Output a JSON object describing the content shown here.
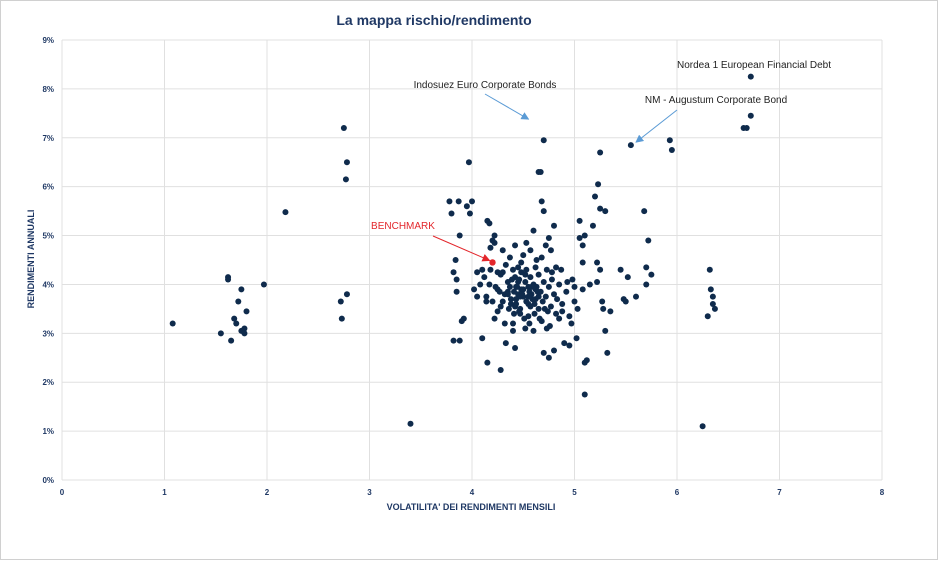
{
  "chart_data": {
    "type": "scatter",
    "title": "La mappa rischio/rendimento",
    "xlabel": "VOLATILITA' DEI RENDIMENTI MENSILI",
    "ylabel": "RENDIMENTI ANNUALI",
    "xlim": [
      0,
      8
    ],
    "ylim": [
      0,
      9
    ],
    "x_ticks": [
      "0",
      "1",
      "2",
      "3",
      "4",
      "5",
      "6",
      "7",
      "8"
    ],
    "y_ticks": [
      "0%",
      "1%",
      "2%",
      "3%",
      "4%",
      "5%",
      "6%",
      "7%",
      "8%",
      "9%"
    ],
    "grid": true,
    "colors": {
      "point": "#0f2b4c",
      "benchmark": "#e3262b",
      "grid": "#e0e0e0",
      "arrow": "#5b9bd5"
    },
    "annotations": [
      {
        "text": "Indosuez Euro Corporate Bonds",
        "x": 4.58,
        "y": 7.32
      },
      {
        "text": "Nordea 1 European Financial Debt",
        "x": 6.72,
        "y": 8.25
      },
      {
        "text": "NM - Augustum Corporate Bond",
        "x": 5.63,
        "y": 6.85
      },
      {
        "text": "BENCHMARK",
        "x": 4.2,
        "y": 4.45
      }
    ],
    "benchmark": {
      "x": 4.2,
      "y": 4.45
    },
    "points": [
      [
        1.08,
        3.2
      ],
      [
        1.55,
        3.0
      ],
      [
        1.62,
        4.15
      ],
      [
        1.62,
        4.1
      ],
      [
        1.65,
        2.85
      ],
      [
        1.68,
        3.3
      ],
      [
        1.7,
        3.2
      ],
      [
        1.72,
        3.65
      ],
      [
        1.75,
        3.9
      ],
      [
        1.75,
        3.05
      ],
      [
        1.78,
        3.1
      ],
      [
        1.78,
        3.0
      ],
      [
        1.8,
        3.45
      ],
      [
        1.97,
        4.0
      ],
      [
        2.18,
        5.48
      ],
      [
        2.72,
        3.65
      ],
      [
        2.73,
        3.3
      ],
      [
        2.75,
        7.2
      ],
      [
        2.77,
        6.15
      ],
      [
        2.78,
        6.5
      ],
      [
        2.78,
        3.8
      ],
      [
        3.4,
        1.15
      ],
      [
        3.78,
        5.7
      ],
      [
        3.8,
        5.45
      ],
      [
        3.82,
        4.25
      ],
      [
        3.82,
        2.85
      ],
      [
        3.84,
        4.5
      ],
      [
        3.85,
        4.1
      ],
      [
        3.85,
        3.85
      ],
      [
        3.87,
        5.7
      ],
      [
        3.88,
        5.0
      ],
      [
        3.88,
        2.85
      ],
      [
        3.9,
        3.25
      ],
      [
        3.92,
        3.3
      ],
      [
        3.95,
        5.6
      ],
      [
        3.97,
        6.5
      ],
      [
        3.98,
        5.45
      ],
      [
        4.0,
        5.7
      ],
      [
        4.02,
        3.9
      ],
      [
        4.05,
        4.25
      ],
      [
        4.05,
        3.75
      ],
      [
        4.08,
        4.0
      ],
      [
        4.1,
        4.3
      ],
      [
        4.1,
        2.9
      ],
      [
        4.12,
        4.15
      ],
      [
        4.14,
        3.75
      ],
      [
        4.14,
        3.65
      ],
      [
        4.15,
        5.3
      ],
      [
        4.15,
        2.4
      ],
      [
        4.17,
        5.25
      ],
      [
        4.17,
        4.0
      ],
      [
        4.18,
        4.75
      ],
      [
        4.18,
        4.3
      ],
      [
        4.2,
        4.9
      ],
      [
        4.2,
        3.65
      ],
      [
        4.22,
        5.0
      ],
      [
        4.22,
        4.85
      ],
      [
        4.22,
        3.3
      ],
      [
        4.25,
        4.25
      ],
      [
        4.25,
        3.9
      ],
      [
        4.27,
        3.85
      ],
      [
        4.28,
        4.2
      ],
      [
        4.28,
        2.25
      ],
      [
        4.3,
        4.7
      ],
      [
        4.3,
        4.25
      ],
      [
        4.3,
        3.65
      ],
      [
        4.32,
        3.8
      ],
      [
        4.32,
        3.2
      ],
      [
        4.33,
        2.8
      ],
      [
        4.35,
        4.05
      ],
      [
        4.35,
        3.85
      ],
      [
        4.37,
        4.55
      ],
      [
        4.37,
        3.95
      ],
      [
        4.38,
        3.7
      ],
      [
        4.4,
        4.3
      ],
      [
        4.4,
        3.2
      ],
      [
        4.4,
        3.05
      ],
      [
        4.42,
        4.8
      ],
      [
        4.42,
        4.15
      ],
      [
        4.42,
        3.55
      ],
      [
        4.42,
        2.7
      ],
      [
        4.43,
        3.95
      ],
      [
        4.45,
        4.35
      ],
      [
        4.45,
        4.05
      ],
      [
        4.45,
        3.8
      ],
      [
        4.47,
        3.5
      ],
      [
        4.47,
        3.4
      ],
      [
        4.48,
        4.25
      ],
      [
        4.48,
        3.9
      ],
      [
        4.5,
        4.6
      ],
      [
        4.5,
        3.75
      ],
      [
        4.52,
        4.05
      ],
      [
        4.52,
        3.1
      ],
      [
        4.53,
        4.85
      ],
      [
        4.53,
        4.3
      ],
      [
        4.55,
        3.95
      ],
      [
        4.55,
        3.6
      ],
      [
        4.55,
        3.35
      ],
      [
        4.57,
        4.7
      ],
      [
        4.57,
        4.15
      ],
      [
        4.58,
        3.8
      ],
      [
        4.6,
        5.1
      ],
      [
        4.6,
        4.0
      ],
      [
        4.6,
        3.05
      ],
      [
        4.62,
        4.35
      ],
      [
        4.62,
        3.7
      ],
      [
        4.63,
        3.95
      ],
      [
        4.65,
        6.3
      ],
      [
        4.65,
        4.2
      ],
      [
        4.65,
        3.5
      ],
      [
        4.67,
        6.3
      ],
      [
        4.67,
        3.85
      ],
      [
        4.68,
        5.7
      ],
      [
        4.68,
        4.55
      ],
      [
        4.68,
        3.25
      ],
      [
        4.7,
        6.95
      ],
      [
        4.7,
        5.5
      ],
      [
        4.7,
        4.05
      ],
      [
        4.7,
        2.6
      ],
      [
        4.72,
        4.8
      ],
      [
        4.72,
        3.75
      ],
      [
        4.73,
        4.3
      ],
      [
        4.73,
        3.1
      ],
      [
        4.75,
        4.95
      ],
      [
        4.75,
        3.95
      ],
      [
        4.75,
        2.5
      ],
      [
        4.77,
        4.7
      ],
      [
        4.77,
        3.55
      ],
      [
        4.78,
        4.25
      ],
      [
        4.8,
        5.2
      ],
      [
        4.8,
        3.8
      ],
      [
        4.8,
        2.65
      ],
      [
        4.82,
        4.35
      ],
      [
        4.82,
        3.4
      ],
      [
        4.85,
        4.0
      ],
      [
        4.85,
        3.3
      ],
      [
        4.87,
        4.3
      ],
      [
        4.88,
        3.6
      ],
      [
        4.9,
        2.8
      ],
      [
        4.92,
        3.85
      ],
      [
        4.95,
        3.35
      ],
      [
        4.95,
        2.75
      ],
      [
        4.98,
        4.1
      ],
      [
        5.0,
        3.65
      ],
      [
        5.0,
        3.95
      ],
      [
        5.02,
        2.9
      ],
      [
        5.05,
        5.3
      ],
      [
        5.05,
        4.95
      ],
      [
        5.08,
        4.8
      ],
      [
        5.08,
        4.45
      ],
      [
        5.1,
        5.0
      ],
      [
        5.1,
        1.75
      ],
      [
        5.1,
        2.4
      ],
      [
        5.12,
        2.45
      ],
      [
        5.15,
        4.0
      ],
      [
        5.18,
        5.2
      ],
      [
        5.2,
        5.8
      ],
      [
        5.22,
        4.45
      ],
      [
        5.22,
        4.05
      ],
      [
        5.23,
        6.05
      ],
      [
        5.25,
        6.7
      ],
      [
        5.25,
        5.55
      ],
      [
        5.25,
        4.3
      ],
      [
        5.27,
        3.65
      ],
      [
        5.28,
        3.5
      ],
      [
        5.3,
        5.5
      ],
      [
        5.3,
        3.05
      ],
      [
        5.32,
        2.6
      ],
      [
        5.35,
        3.45
      ],
      [
        5.45,
        4.3
      ],
      [
        5.48,
        3.7
      ],
      [
        5.5,
        3.65
      ],
      [
        5.52,
        4.15
      ],
      [
        5.55,
        6.85
      ],
      [
        5.6,
        3.75
      ],
      [
        5.68,
        5.5
      ],
      [
        5.7,
        4.0
      ],
      [
        5.7,
        4.35
      ],
      [
        5.72,
        4.9
      ],
      [
        5.75,
        4.2
      ],
      [
        5.93,
        6.95
      ],
      [
        5.95,
        6.75
      ],
      [
        6.25,
        1.1
      ],
      [
        6.3,
        3.35
      ],
      [
        6.32,
        4.3
      ],
      [
        6.33,
        3.9
      ],
      [
        6.35,
        3.75
      ],
      [
        6.35,
        3.6
      ],
      [
        6.37,
        3.5
      ],
      [
        6.65,
        7.2
      ],
      [
        6.68,
        7.2
      ],
      [
        6.72,
        8.25
      ],
      [
        6.72,
        7.45
      ],
      [
        4.35,
        3.8
      ],
      [
        4.38,
        3.6
      ],
      [
        4.41,
        3.85
      ],
      [
        4.44,
        3.95
      ],
      [
        4.47,
        3.75
      ],
      [
        4.5,
        3.9
      ],
      [
        4.53,
        3.65
      ],
      [
        4.56,
        3.85
      ],
      [
        4.59,
        3.7
      ],
      [
        4.62,
        3.9
      ],
      [
        4.65,
        3.75
      ],
      [
        4.39,
        4.1
      ],
      [
        4.43,
        3.7
      ],
      [
        4.46,
        4.1
      ],
      [
        4.49,
        3.8
      ],
      [
        4.52,
        4.2
      ],
      [
        4.55,
        3.75
      ],
      [
        4.58,
        3.95
      ],
      [
        4.61,
        3.6
      ],
      [
        4.64,
        3.85
      ],
      [
        4.36,
        3.5
      ],
      [
        4.41,
        3.4
      ],
      [
        4.46,
        3.45
      ],
      [
        4.51,
        3.3
      ],
      [
        4.56,
        3.2
      ],
      [
        4.61,
        3.4
      ],
      [
        4.66,
        3.3
      ],
      [
        4.71,
        3.5
      ],
      [
        4.76,
        3.15
      ],
      [
        4.33,
        4.4
      ],
      [
        4.48,
        4.45
      ],
      [
        4.63,
        4.5
      ],
      [
        4.78,
        4.1
      ],
      [
        4.83,
        3.7
      ],
      [
        4.88,
        3.45
      ],
      [
        4.93,
        4.05
      ],
      [
        4.97,
        3.2
      ],
      [
        5.03,
        3.5
      ],
      [
        5.08,
        3.9
      ],
      [
        4.25,
        3.45
      ],
      [
        4.28,
        3.55
      ],
      [
        4.23,
        3.95
      ],
      [
        4.43,
        3.6
      ],
      [
        4.57,
        3.55
      ],
      [
        4.69,
        3.65
      ],
      [
        4.74,
        3.45
      ]
    ]
  }
}
